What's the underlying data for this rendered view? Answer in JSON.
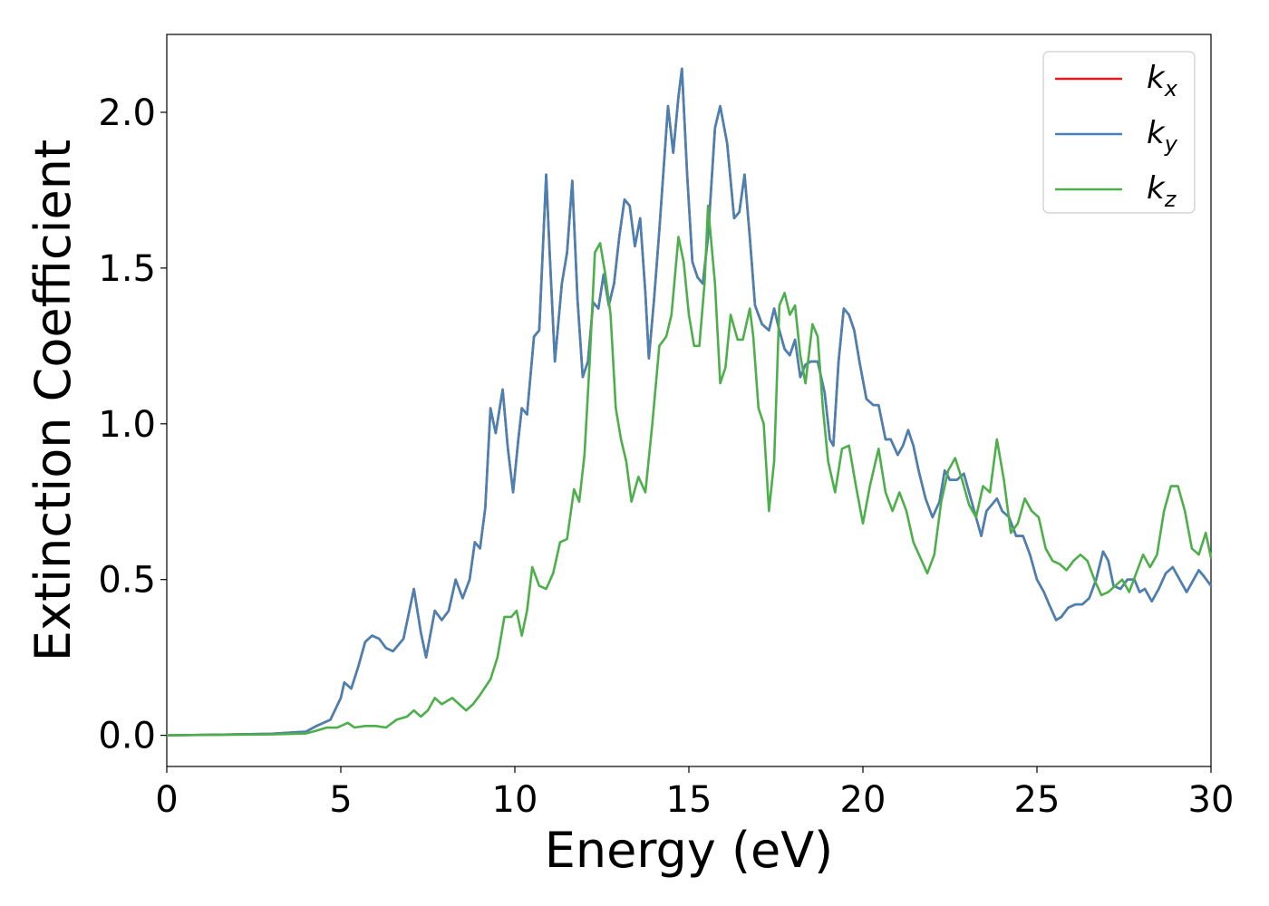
{
  "chart_data": {
    "type": "line",
    "title": "",
    "xlabel": "Energy (eV)",
    "ylabel": "Extinction Coefficient",
    "xlim": [
      0,
      30
    ],
    "ylim": [
      -0.1,
      2.25
    ],
    "xticks": [
      0,
      5,
      10,
      15,
      20,
      25,
      30
    ],
    "xtick_labels": [
      "0",
      "5",
      "10",
      "15",
      "20",
      "25",
      "30"
    ],
    "yticks": [
      0.0,
      0.5,
      1.0,
      1.5,
      2.0
    ],
    "ytick_labels": [
      "0.0",
      "0.5",
      "1.0",
      "1.5",
      "2.0"
    ],
    "grid": false,
    "legend_position": "top-right",
    "series": [
      {
        "name": "k_x",
        "legend_main": "k",
        "legend_sub": "x",
        "color": "#e41a1c",
        "points": [
          [
            0,
            0
          ],
          [
            2,
            0.003
          ],
          [
            3,
            0.005
          ],
          [
            4,
            0.012
          ],
          [
            4.3,
            0.03
          ],
          [
            4.7,
            0.05
          ],
          [
            5,
            0.12
          ],
          [
            5.1,
            0.17
          ],
          [
            5.3,
            0.15
          ],
          [
            5.5,
            0.22
          ],
          [
            5.7,
            0.3
          ],
          [
            5.9,
            0.32
          ],
          [
            6.1,
            0.31
          ],
          [
            6.3,
            0.28
          ],
          [
            6.5,
            0.27
          ],
          [
            6.8,
            0.31
          ],
          [
            7.1,
            0.47
          ],
          [
            7.3,
            0.33
          ],
          [
            7.45,
            0.25
          ],
          [
            7.7,
            0.4
          ],
          [
            7.9,
            0.37
          ],
          [
            8.1,
            0.4
          ],
          [
            8.3,
            0.5
          ],
          [
            8.5,
            0.44
          ],
          [
            8.7,
            0.5
          ],
          [
            8.85,
            0.62
          ],
          [
            9,
            0.6
          ],
          [
            9.15,
            0.73
          ],
          [
            9.3,
            1.05
          ],
          [
            9.45,
            0.97
          ],
          [
            9.65,
            1.11
          ],
          [
            9.8,
            0.92
          ],
          [
            9.95,
            0.78
          ],
          [
            10.1,
            0.95
          ],
          [
            10.2,
            1.05
          ],
          [
            10.35,
            1.03
          ],
          [
            10.55,
            1.28
          ],
          [
            10.7,
            1.3
          ],
          [
            10.9,
            1.8
          ],
          [
            11.0,
            1.55
          ],
          [
            11.15,
            1.2
          ],
          [
            11.35,
            1.45
          ],
          [
            11.5,
            1.55
          ],
          [
            11.65,
            1.78
          ],
          [
            11.8,
            1.4
          ],
          [
            11.95,
            1.15
          ],
          [
            12.1,
            1.2
          ],
          [
            12.25,
            1.39
          ],
          [
            12.4,
            1.37
          ],
          [
            12.55,
            1.48
          ],
          [
            12.7,
            1.38
          ],
          [
            12.85,
            1.45
          ],
          [
            13.0,
            1.6
          ],
          [
            13.15,
            1.72
          ],
          [
            13.3,
            1.7
          ],
          [
            13.45,
            1.57
          ],
          [
            13.6,
            1.66
          ],
          [
            13.75,
            1.42
          ],
          [
            13.85,
            1.21
          ],
          [
            14.0,
            1.4
          ],
          [
            14.15,
            1.62
          ],
          [
            14.25,
            1.78
          ],
          [
            14.4,
            2.02
          ],
          [
            14.55,
            1.87
          ],
          [
            14.7,
            2.05
          ],
          [
            14.8,
            2.14
          ],
          [
            14.95,
            1.8
          ],
          [
            15.1,
            1.52
          ],
          [
            15.25,
            1.47
          ],
          [
            15.4,
            1.45
          ],
          [
            15.55,
            1.6
          ],
          [
            15.75,
            1.95
          ],
          [
            15.9,
            2.02
          ],
          [
            16.1,
            1.9
          ],
          [
            16.3,
            1.66
          ],
          [
            16.45,
            1.68
          ],
          [
            16.6,
            1.8
          ],
          [
            16.75,
            1.6
          ],
          [
            16.9,
            1.38
          ],
          [
            17.1,
            1.32
          ],
          [
            17.3,
            1.3
          ],
          [
            17.45,
            1.37
          ],
          [
            17.6,
            1.3
          ],
          [
            17.75,
            1.24
          ],
          [
            17.9,
            1.22
          ],
          [
            18.05,
            1.27
          ],
          [
            18.2,
            1.15
          ],
          [
            18.35,
            1.19
          ],
          [
            18.5,
            1.2
          ],
          [
            18.7,
            1.2
          ],
          [
            18.9,
            1.1
          ],
          [
            19.05,
            0.95
          ],
          [
            19.15,
            0.93
          ],
          [
            19.3,
            1.2
          ],
          [
            19.45,
            1.37
          ],
          [
            19.6,
            1.35
          ],
          [
            19.75,
            1.3
          ],
          [
            19.9,
            1.2
          ],
          [
            20.1,
            1.08
          ],
          [
            20.3,
            1.06
          ],
          [
            20.45,
            1.06
          ],
          [
            20.65,
            0.95
          ],
          [
            20.8,
            0.95
          ],
          [
            21.0,
            0.9
          ],
          [
            21.15,
            0.93
          ],
          [
            21.3,
            0.98
          ],
          [
            21.45,
            0.93
          ],
          [
            21.6,
            0.85
          ],
          [
            21.8,
            0.76
          ],
          [
            22.0,
            0.7
          ],
          [
            22.2,
            0.75
          ],
          [
            22.35,
            0.85
          ],
          [
            22.5,
            0.82
          ],
          [
            22.7,
            0.82
          ],
          [
            22.9,
            0.84
          ],
          [
            23.05,
            0.78
          ],
          [
            23.2,
            0.72
          ],
          [
            23.4,
            0.64
          ],
          [
            23.55,
            0.72
          ],
          [
            23.7,
            0.74
          ],
          [
            23.85,
            0.76
          ],
          [
            24.0,
            0.72
          ],
          [
            24.2,
            0.7
          ],
          [
            24.4,
            0.64
          ],
          [
            24.6,
            0.64
          ],
          [
            24.8,
            0.58
          ],
          [
            25.0,
            0.5
          ],
          [
            25.2,
            0.46
          ],
          [
            25.35,
            0.42
          ],
          [
            25.55,
            0.37
          ],
          [
            25.7,
            0.38
          ],
          [
            25.9,
            0.41
          ],
          [
            26.1,
            0.42
          ],
          [
            26.3,
            0.42
          ],
          [
            26.5,
            0.44
          ],
          [
            26.7,
            0.5
          ],
          [
            26.9,
            0.59
          ],
          [
            27.05,
            0.56
          ],
          [
            27.2,
            0.48
          ],
          [
            27.4,
            0.47
          ],
          [
            27.6,
            0.5
          ],
          [
            27.8,
            0.5
          ],
          [
            27.95,
            0.46
          ],
          [
            28.1,
            0.47
          ],
          [
            28.3,
            0.43
          ],
          [
            28.5,
            0.47
          ],
          [
            28.7,
            0.52
          ],
          [
            28.9,
            0.54
          ],
          [
            29.1,
            0.5
          ],
          [
            29.3,
            0.46
          ],
          [
            29.5,
            0.5
          ],
          [
            29.65,
            0.53
          ],
          [
            29.8,
            0.51
          ],
          [
            30.0,
            0.48
          ]
        ]
      },
      {
        "name": "k_y",
        "legend_main": "k",
        "legend_sub": "y",
        "color": "#4682b4",
        "same_as": "k_x"
      },
      {
        "name": "k_z",
        "legend_main": "k",
        "legend_sub": "z",
        "color": "#4daf4a",
        "points": [
          [
            0,
            0
          ],
          [
            2,
            0.002
          ],
          [
            3,
            0.003
          ],
          [
            4,
            0.006
          ],
          [
            4.3,
            0.015
          ],
          [
            4.6,
            0.025
          ],
          [
            4.9,
            0.025
          ],
          [
            5.2,
            0.04
          ],
          [
            5.4,
            0.025
          ],
          [
            5.7,
            0.03
          ],
          [
            6.0,
            0.03
          ],
          [
            6.3,
            0.025
          ],
          [
            6.6,
            0.05
          ],
          [
            6.9,
            0.06
          ],
          [
            7.1,
            0.08
          ],
          [
            7.3,
            0.06
          ],
          [
            7.5,
            0.08
          ],
          [
            7.7,
            0.12
          ],
          [
            7.9,
            0.1
          ],
          [
            8.2,
            0.12
          ],
          [
            8.4,
            0.1
          ],
          [
            8.6,
            0.08
          ],
          [
            8.8,
            0.1
          ],
          [
            9.0,
            0.13
          ],
          [
            9.3,
            0.18
          ],
          [
            9.5,
            0.25
          ],
          [
            9.7,
            0.38
          ],
          [
            9.9,
            0.38
          ],
          [
            10.05,
            0.4
          ],
          [
            10.2,
            0.32
          ],
          [
            10.35,
            0.4
          ],
          [
            10.5,
            0.54
          ],
          [
            10.7,
            0.48
          ],
          [
            10.9,
            0.47
          ],
          [
            11.1,
            0.52
          ],
          [
            11.3,
            0.62
          ],
          [
            11.5,
            0.63
          ],
          [
            11.7,
            0.79
          ],
          [
            11.85,
            0.75
          ],
          [
            12.0,
            0.9
          ],
          [
            12.15,
            1.2
          ],
          [
            12.3,
            1.55
          ],
          [
            12.45,
            1.58
          ],
          [
            12.6,
            1.48
          ],
          [
            12.75,
            1.35
          ],
          [
            12.9,
            1.05
          ],
          [
            13.05,
            0.95
          ],
          [
            13.2,
            0.88
          ],
          [
            13.35,
            0.75
          ],
          [
            13.55,
            0.83
          ],
          [
            13.75,
            0.78
          ],
          [
            13.95,
            1.0
          ],
          [
            14.15,
            1.25
          ],
          [
            14.35,
            1.28
          ],
          [
            14.5,
            1.35
          ],
          [
            14.7,
            1.6
          ],
          [
            14.85,
            1.52
          ],
          [
            15.0,
            1.35
          ],
          [
            15.15,
            1.25
          ],
          [
            15.3,
            1.25
          ],
          [
            15.45,
            1.45
          ],
          [
            15.55,
            1.7
          ],
          [
            15.75,
            1.45
          ],
          [
            15.9,
            1.13
          ],
          [
            16.05,
            1.18
          ],
          [
            16.2,
            1.35
          ],
          [
            16.4,
            1.27
          ],
          [
            16.55,
            1.27
          ],
          [
            16.75,
            1.37
          ],
          [
            16.85,
            1.28
          ],
          [
            17.0,
            1.05
          ],
          [
            17.15,
            1.0
          ],
          [
            17.3,
            0.72
          ],
          [
            17.45,
            0.88
          ],
          [
            17.6,
            1.38
          ],
          [
            17.75,
            1.42
          ],
          [
            17.9,
            1.35
          ],
          [
            18.05,
            1.38
          ],
          [
            18.2,
            1.22
          ],
          [
            18.35,
            1.13
          ],
          [
            18.55,
            1.32
          ],
          [
            18.7,
            1.28
          ],
          [
            18.85,
            1.05
          ],
          [
            19.0,
            0.88
          ],
          [
            19.2,
            0.78
          ],
          [
            19.4,
            0.92
          ],
          [
            19.6,
            0.93
          ],
          [
            19.8,
            0.8
          ],
          [
            20.0,
            0.68
          ],
          [
            20.2,
            0.8
          ],
          [
            20.45,
            0.92
          ],
          [
            20.65,
            0.78
          ],
          [
            20.85,
            0.72
          ],
          [
            21.05,
            0.78
          ],
          [
            21.25,
            0.72
          ],
          [
            21.45,
            0.62
          ],
          [
            21.65,
            0.57
          ],
          [
            21.85,
            0.52
          ],
          [
            22.05,
            0.58
          ],
          [
            22.25,
            0.75
          ],
          [
            22.45,
            0.85
          ],
          [
            22.65,
            0.89
          ],
          [
            22.85,
            0.82
          ],
          [
            23.05,
            0.74
          ],
          [
            23.25,
            0.7
          ],
          [
            23.45,
            0.8
          ],
          [
            23.65,
            0.78
          ],
          [
            23.85,
            0.95
          ],
          [
            24.05,
            0.82
          ],
          [
            24.25,
            0.65
          ],
          [
            24.45,
            0.68
          ],
          [
            24.65,
            0.76
          ],
          [
            24.85,
            0.72
          ],
          [
            25.05,
            0.7
          ],
          [
            25.25,
            0.6
          ],
          [
            25.45,
            0.56
          ],
          [
            25.65,
            0.55
          ],
          [
            25.85,
            0.53
          ],
          [
            26.05,
            0.56
          ],
          [
            26.25,
            0.58
          ],
          [
            26.45,
            0.56
          ],
          [
            26.65,
            0.5
          ],
          [
            26.85,
            0.45
          ],
          [
            27.05,
            0.46
          ],
          [
            27.25,
            0.48
          ],
          [
            27.45,
            0.5
          ],
          [
            27.65,
            0.46
          ],
          [
            27.85,
            0.52
          ],
          [
            28.05,
            0.58
          ],
          [
            28.25,
            0.54
          ],
          [
            28.45,
            0.58
          ],
          [
            28.65,
            0.72
          ],
          [
            28.85,
            0.8
          ],
          [
            29.05,
            0.8
          ],
          [
            29.25,
            0.72
          ],
          [
            29.45,
            0.6
          ],
          [
            29.65,
            0.58
          ],
          [
            29.85,
            0.65
          ],
          [
            30.0,
            0.57
          ]
        ]
      }
    ]
  }
}
